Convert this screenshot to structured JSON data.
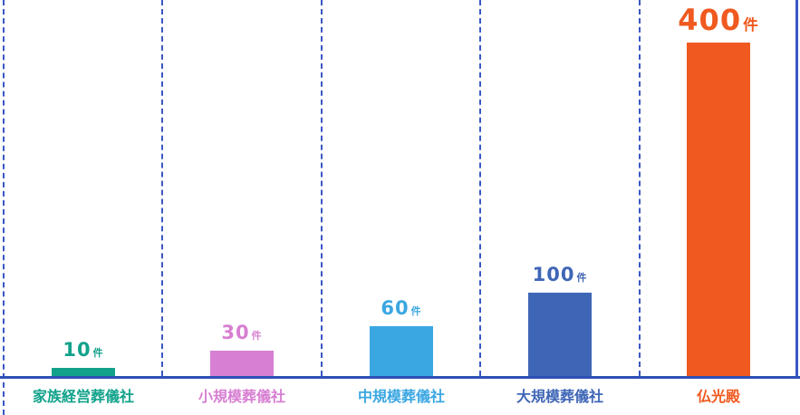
{
  "chart_data": {
    "type": "bar",
    "title": "",
    "unit": "件",
    "categories": [
      "家族経営葬儀社",
      "小規模葬儀社",
      "中規模葬儀社",
      "大規模葬儀社",
      "仏光殿"
    ],
    "values": [
      10,
      30,
      60,
      100,
      400
    ],
    "value_labels": [
      "10件",
      "30件",
      "60件",
      "100件",
      "400件"
    ],
    "bar_colors": [
      "#12a28b",
      "#d77fd2",
      "#3ba7e2",
      "#3f66b6",
      "#f0591f"
    ],
    "label_colors": [
      "#12a28b",
      "#d77fd2",
      "#3ba7e2",
      "#3f66b6",
      "#f0591f"
    ],
    "ylim": [
      0,
      400
    ],
    "xlabel": "",
    "ylabel": "",
    "grid": "vertical-dashed",
    "gridline_color": "#3a57c4",
    "baseline_color": "#2e50b5",
    "legend": "none"
  }
}
